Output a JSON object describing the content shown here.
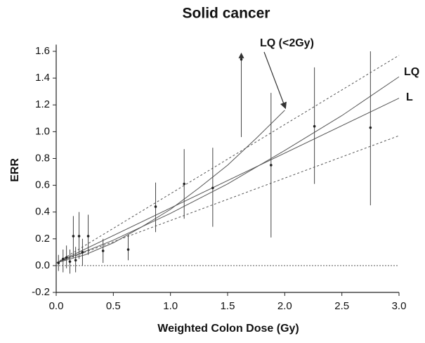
{
  "chart_data": {
    "type": "scatter",
    "title": "Solid cancer",
    "x_label": "Weighted Colon Dose (Gy)",
    "y_label": "ERR",
    "xlim": [
      0,
      3.0
    ],
    "ylim": [
      -0.2,
      1.65
    ],
    "xticks": [
      {
        "value": 0,
        "label": "0.0"
      },
      0.5,
      {
        "value": 1,
        "label": "1.0"
      },
      1.5,
      {
        "value": 2,
        "label": "2.0"
      },
      2.5,
      {
        "value": 3,
        "label": "3.0"
      }
    ],
    "yticks": [
      -0.2,
      {
        "value": 0,
        "label": "0.0"
      },
      0.2,
      0.4,
      0.6,
      0.8,
      {
        "value": 1,
        "label": "1.0"
      },
      1.2,
      1.4,
      1.6
    ],
    "hline": 0,
    "points": {
      "color": "#222222",
      "x": [
        0.02,
        0.06,
        0.09,
        0.12,
        0.15,
        0.17,
        0.2,
        0.23,
        0.28,
        0.41,
        0.63,
        0.87,
        1.12,
        1.37,
        1.62,
        1.88,
        2.26,
        2.75
      ],
      "values": [
        0.02,
        0.05,
        0.06,
        0.03,
        0.22,
        0.04,
        0.22,
        0.1,
        0.22,
        0.11,
        0.12,
        0.44,
        0.61,
        0.58,
        1.54,
        0.75,
        1.04,
        1.03
      ],
      "lower": [
        -0.04,
        -0.05,
        -0.02,
        -0.06,
        0.06,
        -0.05,
        0.05,
        0.0,
        0.08,
        0.02,
        0.04,
        0.25,
        0.35,
        0.29,
        0.96,
        0.21,
        0.61,
        0.45
      ],
      "upper": [
        0.08,
        0.12,
        0.15,
        0.12,
        0.37,
        0.14,
        0.4,
        0.2,
        0.38,
        0.2,
        0.23,
        0.62,
        0.87,
        0.88,
        1.58,
        1.29,
        1.48,
        1.6
      ]
    },
    "lines": [
      {
        "name": "L",
        "color": "#555555",
        "dashed": false,
        "x": [
          0,
          3.0
        ],
        "values": [
          0.02,
          1.25
        ]
      },
      {
        "name": "LQ",
        "color": "#555555",
        "dashed": false,
        "x": [
          0,
          0.5,
          1,
          1.5,
          2,
          2.5,
          3
        ],
        "values": [
          0.02,
          0.19,
          0.39,
          0.61,
          0.86,
          1.12,
          1.41
        ]
      },
      {
        "name": "LQ (<2Gy)",
        "color": "#555555",
        "dashed": false,
        "x": [
          0,
          0.25,
          0.5,
          0.75,
          1,
          1.25,
          1.5,
          1.75,
          2
        ],
        "values": [
          0.02,
          0.08,
          0.17,
          0.29,
          0.42,
          0.58,
          0.75,
          0.95,
          1.16
        ]
      },
      {
        "color": "#555555",
        "dashed": true,
        "x": [
          0,
          3.0
        ],
        "values": [
          0.02,
          1.57
        ]
      },
      {
        "color": "#555555",
        "dashed": true,
        "x": [
          0,
          3.0
        ],
        "values": [
          0.02,
          0.97
        ]
      }
    ]
  }
}
